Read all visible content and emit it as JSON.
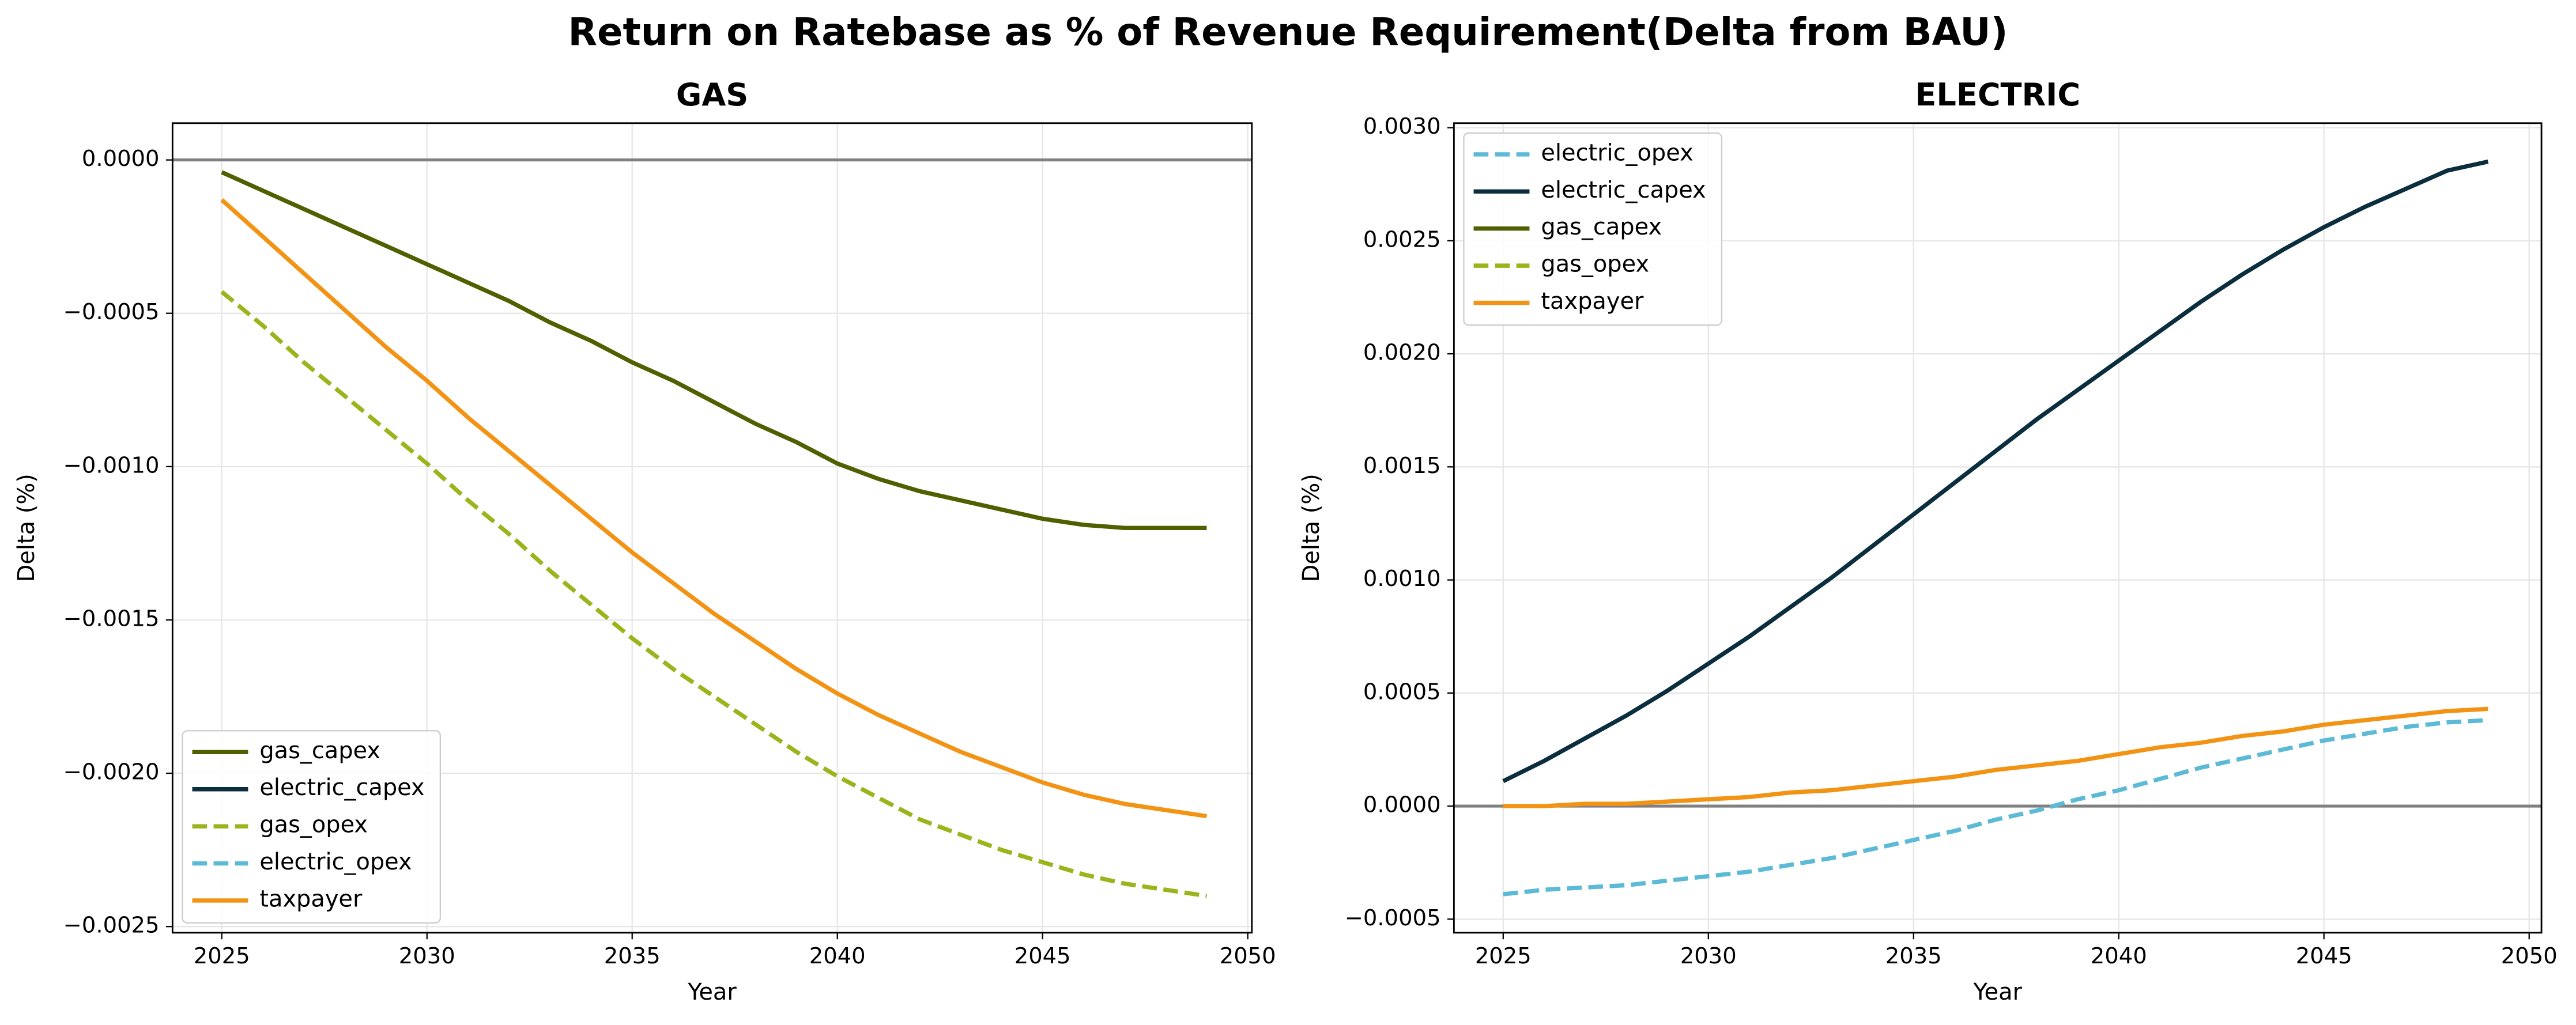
{
  "title": "Return on Ratebase as % of Revenue Requirement(Delta from BAU)",
  "chart_data": [
    {
      "type": "line",
      "title": "GAS",
      "xlabel": "Year",
      "ylabel": "Delta (%)",
      "x": [
        2025,
        2026,
        2027,
        2028,
        2029,
        2030,
        2031,
        2032,
        2033,
        2034,
        2035,
        2036,
        2037,
        2038,
        2039,
        2040,
        2041,
        2042,
        2043,
        2044,
        2045,
        2046,
        2047,
        2048,
        2049
      ],
      "xlim": [
        2023.8,
        2050.1
      ],
      "xticks": [
        2025,
        2030,
        2035,
        2040,
        2045,
        2050
      ],
      "ylim": [
        -0.00252,
        0.00012
      ],
      "yticks": [
        {
          "value": 0,
          "label": "0.0000"
        },
        {
          "value": -0.0005,
          "label": "−0.0005"
        },
        {
          "value": -0.001,
          "label": "−0.0010"
        },
        {
          "value": -0.0015,
          "label": "−0.0015"
        },
        {
          "value": -0.002,
          "label": "−0.0020"
        },
        {
          "value": -0.0025,
          "label": "−0.0025"
        }
      ],
      "grid": true,
      "legend": "lower left",
      "reference_line": 0,
      "reference_color": "#808080",
      "series": [
        {
          "name": "gas_capex",
          "color": "#4f6000",
          "dash": false,
          "values": [
            -4e-05,
            -0.0001,
            -0.00016,
            -0.00022,
            -0.00028,
            -0.00034,
            -0.0004,
            -0.00046,
            -0.00053,
            -0.00059,
            -0.00066,
            -0.00072,
            -0.00079,
            -0.00086,
            -0.00092,
            -0.00099,
            -0.00104,
            -0.00108,
            -0.00111,
            -0.00114,
            -0.00117,
            -0.00119,
            -0.0012,
            -0.0012,
            -0.0012
          ]
        },
        {
          "name": "electric_capex",
          "color": "#0b2e3f",
          "dash": false,
          "values": [
            null,
            null,
            null,
            null,
            null,
            null,
            null,
            null,
            null,
            null,
            null,
            null,
            null,
            null,
            null,
            null,
            null,
            null,
            null,
            null,
            null,
            null,
            null,
            null,
            null
          ]
        },
        {
          "name": "gas_opex",
          "color": "#9ab51c",
          "dash": true,
          "values": [
            -0.00043,
            -0.00054,
            -0.00066,
            -0.00077,
            -0.00088,
            -0.00099,
            -0.00111,
            -0.00122,
            -0.00134,
            -0.00145,
            -0.00156,
            -0.00166,
            -0.00175,
            -0.00184,
            -0.00193,
            -0.00201,
            -0.00208,
            -0.00215,
            -0.0022,
            -0.00225,
            -0.00229,
            -0.00233,
            -0.00236,
            -0.00238,
            -0.0024
          ]
        },
        {
          "name": "electric_opex",
          "color": "#5cbad6",
          "dash": true,
          "values": [
            null,
            null,
            null,
            null,
            null,
            null,
            null,
            null,
            null,
            null,
            null,
            null,
            null,
            null,
            null,
            null,
            null,
            null,
            null,
            null,
            null,
            null,
            null,
            null,
            null
          ]
        },
        {
          "name": "taxpayer",
          "color": "#f39314",
          "dash": false,
          "values": [
            -0.00013,
            -0.00025,
            -0.00037,
            -0.00049,
            -0.00061,
            -0.00072,
            -0.00084,
            -0.00095,
            -0.00106,
            -0.00117,
            -0.00128,
            -0.00138,
            -0.00148,
            -0.00157,
            -0.00166,
            -0.00174,
            -0.00181,
            -0.00187,
            -0.00193,
            -0.00198,
            -0.00203,
            -0.00207,
            -0.0021,
            -0.00212,
            -0.00214
          ]
        }
      ]
    },
    {
      "type": "line",
      "title": "ELECTRIC",
      "xlabel": "Year",
      "ylabel": "Delta (%)",
      "x": [
        2025,
        2026,
        2027,
        2028,
        2029,
        2030,
        2031,
        2032,
        2033,
        2034,
        2035,
        2036,
        2037,
        2038,
        2039,
        2040,
        2041,
        2042,
        2043,
        2044,
        2045,
        2046,
        2047,
        2048,
        2049
      ],
      "xlim": [
        2023.8,
        2050.3
      ],
      "xticks": [
        2025,
        2030,
        2035,
        2040,
        2045,
        2050
      ],
      "ylim": [
        -0.00056,
        0.00302
      ],
      "yticks": [
        {
          "value": -0.0005,
          "label": "−0.0005"
        },
        {
          "value": 0,
          "label": "0.0000"
        },
        {
          "value": 0.0005,
          "label": "0.0005"
        },
        {
          "value": 0.001,
          "label": "0.0010"
        },
        {
          "value": 0.0015,
          "label": "0.0015"
        },
        {
          "value": 0.002,
          "label": "0.0020"
        },
        {
          "value": 0.0025,
          "label": "0.0025"
        },
        {
          "value": 0.003,
          "label": "0.0030"
        }
      ],
      "grid": true,
      "legend": "upper left",
      "reference_line": 0,
      "reference_color": "#808080",
      "series": [
        {
          "name": "electric_opex",
          "color": "#5cbad6",
          "dash": true,
          "values": [
            -0.00039,
            -0.00037,
            -0.00036,
            -0.00035,
            -0.00033,
            -0.00031,
            -0.00029,
            -0.00026,
            -0.00023,
            -0.00019,
            -0.00015,
            -0.00011,
            -6e-05,
            -2e-05,
            3e-05,
            7e-05,
            0.00012,
            0.00017,
            0.00021,
            0.00025,
            0.00029,
            0.00032,
            0.00035,
            0.00037,
            0.00038
          ]
        },
        {
          "name": "electric_capex",
          "color": "#0b2e3f",
          "dash": false,
          "values": [
            0.00011,
            0.0002,
            0.0003,
            0.0004,
            0.00051,
            0.00063,
            0.00075,
            0.00088,
            0.00101,
            0.00115,
            0.00129,
            0.00143,
            0.00157,
            0.00171,
            0.00184,
            0.00197,
            0.0021,
            0.00223,
            0.00235,
            0.00246,
            0.00256,
            0.00265,
            0.00273,
            0.00281,
            0.00285
          ]
        },
        {
          "name": "gas_capex",
          "color": "#4f6000",
          "dash": false,
          "values": [
            null,
            null,
            null,
            null,
            null,
            null,
            null,
            null,
            null,
            null,
            null,
            null,
            null,
            null,
            null,
            null,
            null,
            null,
            null,
            null,
            null,
            null,
            null,
            null,
            null
          ]
        },
        {
          "name": "gas_opex",
          "color": "#9ab51c",
          "dash": true,
          "values": [
            null,
            null,
            null,
            null,
            null,
            null,
            null,
            null,
            null,
            null,
            null,
            null,
            null,
            null,
            null,
            null,
            null,
            null,
            null,
            null,
            null,
            null,
            null,
            null,
            null
          ]
        },
        {
          "name": "taxpayer",
          "color": "#f39314",
          "dash": false,
          "values": [
            0,
            0,
            1e-05,
            1e-05,
            2e-05,
            3e-05,
            4e-05,
            6e-05,
            7e-05,
            9e-05,
            0.00011,
            0.00013,
            0.00016,
            0.00018,
            0.0002,
            0.00023,
            0.00026,
            0.00028,
            0.00031,
            0.00033,
            0.00036,
            0.00038,
            0.0004,
            0.00042,
            0.00043
          ]
        }
      ]
    }
  ]
}
